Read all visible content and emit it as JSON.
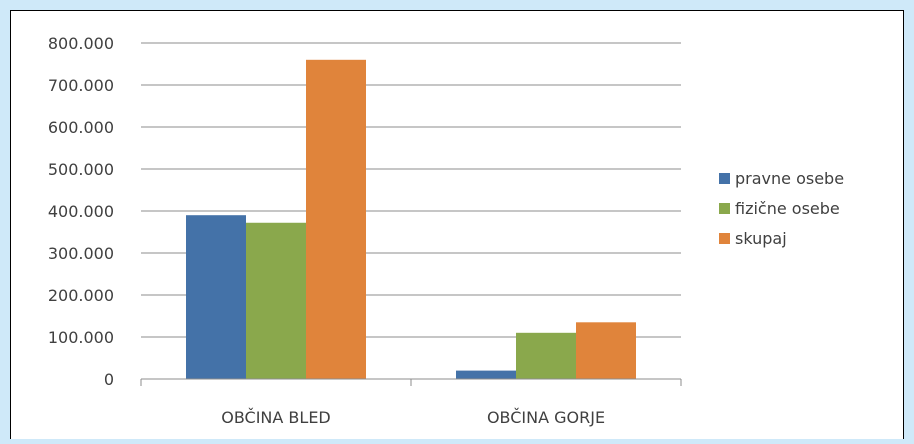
{
  "chart_data": {
    "type": "bar",
    "title": "",
    "xlabel": "",
    "ylabel": "",
    "categories": [
      "OBČINA BLED",
      "OBČINA GORJE"
    ],
    "series": [
      {
        "name": "pravne osebe",
        "color": "#4472a8",
        "values": [
          390000,
          20000
        ]
      },
      {
        "name": "fizične osebe",
        "color": "#8aa84c",
        "values": [
          372000,
          110000
        ]
      },
      {
        "name": "skupaj",
        "color": "#e0843b",
        "values": [
          760000,
          135000
        ]
      }
    ],
    "ylim": [
      0,
      800000
    ],
    "yticks": [
      {
        "value": 0,
        "label": "0"
      },
      {
        "value": 100000,
        "label": "100.000"
      },
      {
        "value": 200000,
        "label": "200.000"
      },
      {
        "value": 300000,
        "label": "300.000"
      },
      {
        "value": 400000,
        "label": "400.000"
      },
      {
        "value": 500000,
        "label": "500.000"
      },
      {
        "value": 600000,
        "label": "600.000"
      },
      {
        "value": 700000,
        "label": "700.000"
      },
      {
        "value": 800000,
        "label": "800.000"
      }
    ],
    "grid": true,
    "legend_position": "right"
  }
}
